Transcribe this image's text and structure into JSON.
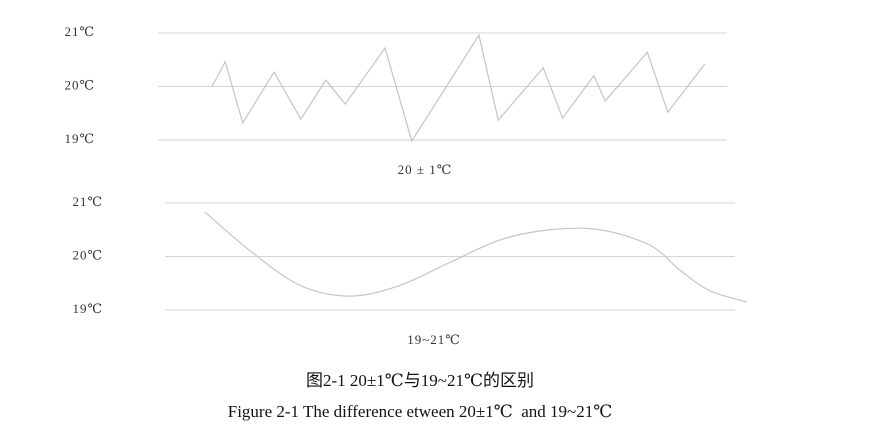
{
  "chart_data": [
    {
      "type": "line",
      "xlabel": "20 ± 1℃",
      "x": [
        9.5,
        11.8,
        14.9,
        20.4,
        25.1,
        29.5,
        32.9,
        39.9,
        44.6,
        56.4,
        59.8,
        67.7,
        71.1,
        76.6,
        78.6,
        86.0,
        89.6,
        96.1
      ],
      "series": [
        {
          "color": "#c4c4c4",
          "values": [
            20.0,
            20.46,
            19.32,
            20.27,
            19.39,
            20.12,
            19.67,
            20.72,
            18.98,
            20.96,
            19.37,
            20.35,
            19.41,
            20.2,
            19.73,
            20.64,
            19.52,
            20.42
          ]
        }
      ],
      "xlim": [
        0,
        100
      ],
      "ylim": [
        19,
        21
      ],
      "yticks": [
        {
          "value": 21,
          "label": "21℃"
        },
        {
          "value": 20,
          "label": "20℃"
        },
        {
          "value": 19,
          "label": "19℃"
        }
      ],
      "grid": true,
      "smooth": false
    },
    {
      "type": "line",
      "xlabel": "19~21℃",
      "x": [
        7.0,
        14.9,
        23.7,
        32.5,
        41.2,
        50.0,
        58.8,
        67.5,
        76.3,
        85.1,
        90.4,
        95.6,
        102.1
      ],
      "series": [
        {
          "color": "#c4c4c4",
          "values": [
            20.83,
            20.11,
            19.46,
            19.26,
            19.46,
            19.89,
            20.31,
            20.5,
            20.5,
            20.21,
            19.74,
            19.36,
            19.15
          ]
        }
      ],
      "xlim": [
        0,
        100
      ],
      "ylim": [
        19,
        21
      ],
      "yticks": [
        {
          "value": 21,
          "label": "21℃"
        },
        {
          "value": 20,
          "label": "20℃"
        },
        {
          "value": 19,
          "label": "19℃"
        }
      ],
      "grid": true,
      "smooth": true
    }
  ],
  "caption": {
    "chinese": "图2-1 20±1℃与19~21℃的区别",
    "english": "Figure 2-1 The difference etween 20±1℃  and 19~21℃"
  }
}
